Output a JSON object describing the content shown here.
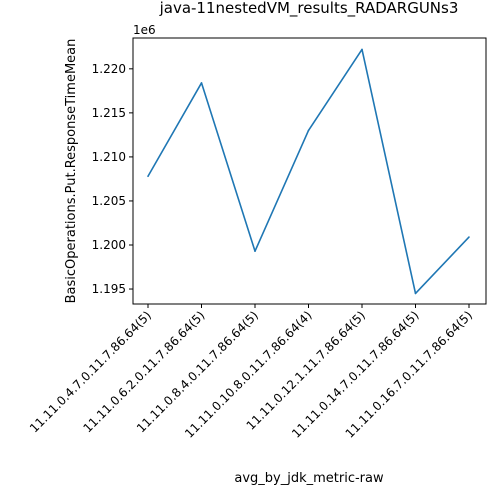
{
  "chart_data": {
    "type": "line",
    "title": "java-11nestedVM_results_RADARGUNs3",
    "xlabel": "avg_by_jdk_metric-raw",
    "ylabel": "BasicOperations.Put.ResponseTimeMean",
    "offset_label": "1e6",
    "categories": [
      "11.11.0.4.7.0.11.7.86.64(5)",
      "11.11.0.6.2.0.11.7.86.64(5)",
      "11.11.0.8.4.0.11.7.86.64(5)",
      "11.11.0.10.8.0.11.7.86.64(4)",
      "11.11.0.12.1.11.7.86.64(5)",
      "11.11.0.14.7.0.11.7.86.64(5)",
      "11.11.0.16.7.0.11.7.86.64(5)"
    ],
    "values": [
      1207800,
      1218400,
      1199300,
      1213000,
      1222200,
      1194500,
      1200900
    ],
    "ylim": [
      1193300,
      1223500
    ],
    "yticks": [
      1195000,
      1200000,
      1205000,
      1210000,
      1215000,
      1220000
    ],
    "ytick_labels": [
      "1.195",
      "1.200",
      "1.205",
      "1.210",
      "1.215",
      "1.220"
    ],
    "line_color": "#1f77b4",
    "grid": false,
    "legend": "none"
  }
}
